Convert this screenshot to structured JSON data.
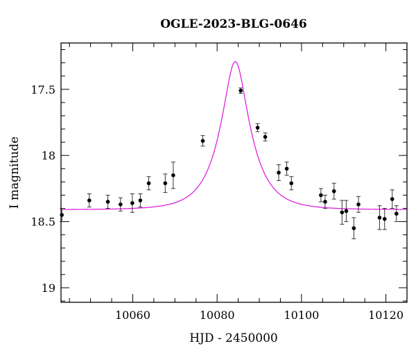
{
  "chart_data": {
    "type": "scatter",
    "title": "OGLE-2023-BLG-0646",
    "xlabel": "HJD - 2450000",
    "ylabel": "I magnitude",
    "xlim": [
      10043,
      10125
    ],
    "ylim": [
      19.11,
      17.15
    ],
    "y_inverted": true,
    "grid": false,
    "x_major_ticks": [
      10060,
      10080,
      10100,
      10120
    ],
    "x_tick_labels": [
      "10060",
      "10080",
      "10100",
      "10120"
    ],
    "x_minor_step": 5,
    "y_major_ticks": [
      17.5,
      18,
      18.5,
      19
    ],
    "y_tick_labels": [
      "17.5",
      "18",
      "18.5",
      "19"
    ],
    "y_minor_step": 0.1,
    "model_color": "#e020e0",
    "point_color": "#000000",
    "model": {
      "t0": 10084.3,
      "u0": 0.375,
      "tE": 6.8,
      "baseline": 18.41
    },
    "series": [
      {
        "points": [
          {
            "x": 10043.2,
            "y": 18.45,
            "err": 0.05
          },
          {
            "x": 10049.7,
            "y": 18.34,
            "err": 0.05
          },
          {
            "x": 10054.1,
            "y": 18.35,
            "err": 0.05
          },
          {
            "x": 10057.1,
            "y": 18.37,
            "err": 0.05
          },
          {
            "x": 10059.9,
            "y": 18.36,
            "err": 0.07
          },
          {
            "x": 10061.8,
            "y": 18.34,
            "err": 0.05
          },
          {
            "x": 10063.8,
            "y": 18.21,
            "err": 0.05
          },
          {
            "x": 10067.7,
            "y": 18.21,
            "err": 0.07
          },
          {
            "x": 10069.6,
            "y": 18.15,
            "err": 0.1
          },
          {
            "x": 10076.6,
            "y": 17.89,
            "err": 0.04
          },
          {
            "x": 10085.6,
            "y": 17.51,
            "err": 0.02
          },
          {
            "x": 10089.6,
            "y": 17.79,
            "err": 0.03
          },
          {
            "x": 10091.4,
            "y": 17.86,
            "err": 0.03
          },
          {
            "x": 10094.6,
            "y": 18.13,
            "err": 0.06
          },
          {
            "x": 10096.5,
            "y": 18.1,
            "err": 0.05
          },
          {
            "x": 10097.6,
            "y": 18.21,
            "err": 0.05
          },
          {
            "x": 10104.6,
            "y": 18.3,
            "err": 0.05
          },
          {
            "x": 10105.6,
            "y": 18.35,
            "err": 0.05
          },
          {
            "x": 10107.7,
            "y": 18.27,
            "err": 0.06
          },
          {
            "x": 10109.6,
            "y": 18.43,
            "err": 0.09
          },
          {
            "x": 10110.6,
            "y": 18.42,
            "err": 0.08
          },
          {
            "x": 10112.4,
            "y": 18.55,
            "err": 0.08
          },
          {
            "x": 10113.5,
            "y": 18.37,
            "err": 0.06
          },
          {
            "x": 10118.5,
            "y": 18.47,
            "err": 0.09
          },
          {
            "x": 10119.7,
            "y": 18.48,
            "err": 0.08
          },
          {
            "x": 10121.5,
            "y": 18.33,
            "err": 0.07
          },
          {
            "x": 10122.5,
            "y": 18.44,
            "err": 0.06
          }
        ]
      }
    ]
  }
}
